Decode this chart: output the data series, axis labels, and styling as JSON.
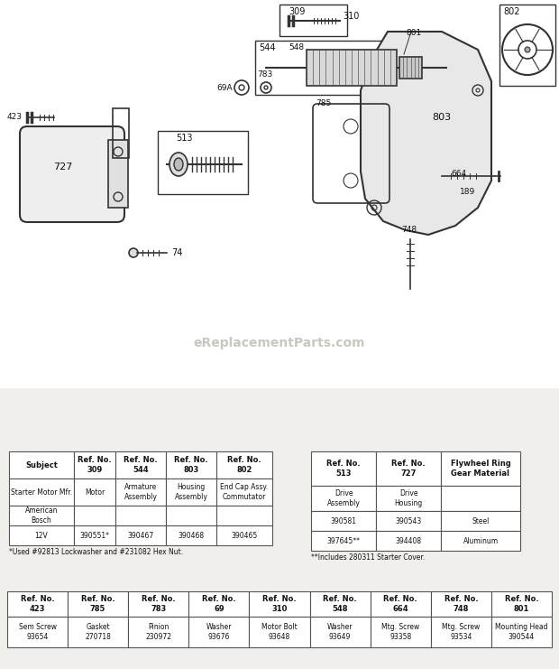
{
  "bg_color": "#f0efeb",
  "diagram_bg": "#ffffff",
  "watermark": "eReplacementParts.com",
  "table1_headers": [
    "Subject",
    "Ref. No.\n309",
    "Ref. No.\n544",
    "Ref. No.\n803",
    "Ref. No.\n802"
  ],
  "table1_row1": [
    "Starter Motor Mfr.",
    "Motor",
    "Armature\nAssembly",
    "Housing\nAssembly",
    "End Cap Assy.\nCommutator"
  ],
  "table1_row2": [
    "American\nBosch",
    "",
    "",
    "",
    ""
  ],
  "table1_row3": [
    "12V",
    "390551*",
    "390467",
    "390468",
    "390465"
  ],
  "table1_footnote": "*Used #92813 Lockwasher and #231082 Hex Nut.",
  "table2_headers": [
    "Ref. No.\n513",
    "Ref. No.\n727",
    "Flywheel Ring\nGear Material"
  ],
  "table2_row1": [
    "Drive\nAssembly",
    "Drive\nHousing",
    ""
  ],
  "table2_row2": [
    "390581",
    "390543",
    "Steel"
  ],
  "table2_row3": [
    "397645**",
    "394408",
    "Aluminum"
  ],
  "table2_footnote": "**Includes 280311 Starter Cover.",
  "table3_headers": [
    "Ref. No.\n423",
    "Ref. No.\n785",
    "Ref. No.\n783",
    "Ref. No.\n69",
    "Ref. No.\n310",
    "Ref. No.\n548",
    "Ref. No.\n664",
    "Ref. No.\n748",
    "Ref. No.\n801"
  ],
  "table3_row1": [
    "Sem Screw\n93654",
    "Gasket\n270718",
    "Pinion\n230972",
    "Washer\n93676",
    "Motor Bolt\n93648",
    "Washer\n93649",
    "Mtg. Screw\n93358",
    "Mtg. Screw\n93534",
    "Mounting Head\n390544"
  ]
}
